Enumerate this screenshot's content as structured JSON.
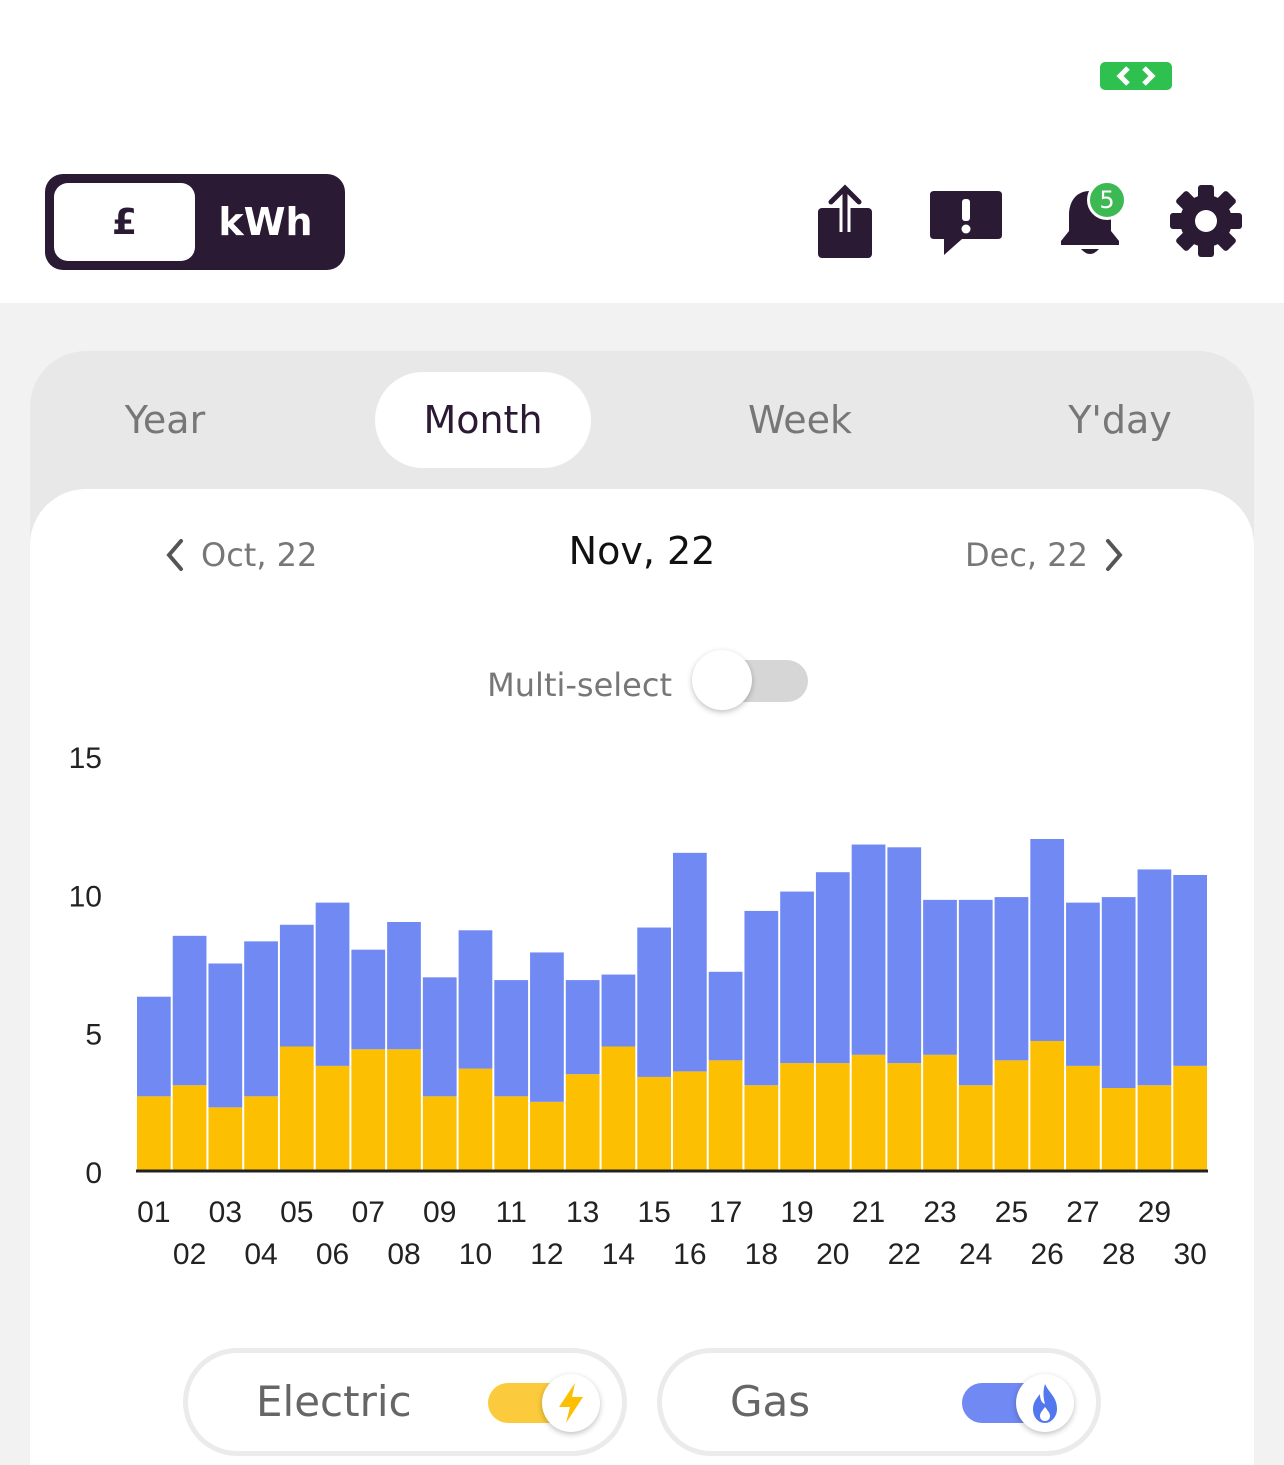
{
  "header": {
    "units": {
      "pound_label": "£",
      "kwh_label": "kWh",
      "selected": "£"
    },
    "notifications_count": "5"
  },
  "tabs": [
    {
      "label": "Year",
      "selected": false
    },
    {
      "label": "Month",
      "selected": true
    },
    {
      "label": "Week",
      "selected": false
    },
    {
      "label": "Y'day",
      "selected": false
    }
  ],
  "period_nav": {
    "prev": "Oct, 22",
    "current": "Nov, 22",
    "next": "Dec, 22"
  },
  "multi_select": {
    "label": "Multi-select",
    "on": false
  },
  "fuels": [
    {
      "label": "Electric",
      "on": true,
      "color": "#fdbf02",
      "icon": "lightning-icon"
    },
    {
      "label": "Gas",
      "on": true,
      "color": "#7089f3",
      "icon": "flame-icon"
    }
  ],
  "colors": {
    "brand": "#2b1a33",
    "electric": "#fdbf02",
    "gas": "#7089f3",
    "badge": "#3cb953"
  },
  "chart_data": {
    "type": "bar",
    "stacked": true,
    "categories": [
      "01",
      "02",
      "03",
      "04",
      "05",
      "06",
      "07",
      "08",
      "09",
      "10",
      "11",
      "12",
      "13",
      "14",
      "15",
      "16",
      "17",
      "18",
      "19",
      "20",
      "21",
      "22",
      "23",
      "24",
      "25",
      "26",
      "27",
      "28",
      "29",
      "30"
    ],
    "series": [
      {
        "name": "Electric",
        "color": "#fdbf02",
        "values": [
          2.7,
          3.1,
          2.3,
          2.7,
          4.5,
          3.8,
          4.4,
          4.4,
          2.7,
          3.7,
          2.7,
          2.5,
          3.5,
          4.5,
          3.4,
          3.6,
          4.0,
          3.1,
          3.9,
          3.9,
          4.2,
          3.9,
          4.2,
          3.1,
          4.0,
          4.7,
          3.8,
          3.0,
          3.1,
          3.8
        ]
      },
      {
        "name": "Gas",
        "color": "#7089f3",
        "values": [
          3.6,
          5.4,
          5.2,
          5.6,
          4.4,
          5.9,
          3.6,
          4.6,
          4.3,
          5.0,
          4.2,
          5.4,
          3.4,
          2.6,
          5.4,
          7.9,
          3.2,
          6.3,
          6.2,
          6.9,
          7.6,
          7.8,
          5.6,
          6.7,
          5.9,
          7.3,
          5.9,
          6.9,
          7.8,
          6.9
        ]
      }
    ],
    "title": "",
    "xlabel": "",
    "ylabel": "",
    "yticks": [
      "0",
      "5",
      "10",
      "15"
    ],
    "ylim": [
      0,
      15
    ],
    "grid": false,
    "legend": "none"
  }
}
